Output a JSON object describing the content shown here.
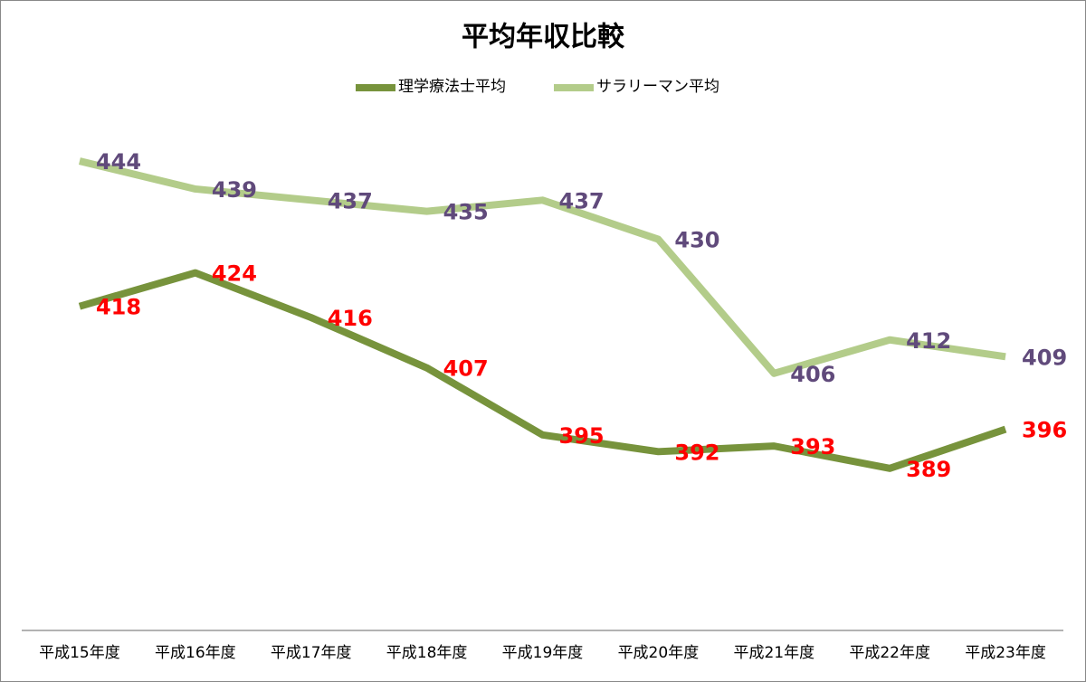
{
  "chart_data": {
    "type": "line",
    "title": "平均年収比較",
    "categories": [
      "平成15年度",
      "平成16年度",
      "平成17年度",
      "平成18年度",
      "平成19年度",
      "平成20年度",
      "平成21年度",
      "平成22年度",
      "平成23年度"
    ],
    "series": [
      {
        "name": "理学療法士平均",
        "color": "#77933c",
        "label_color": "#ff0000",
        "values": [
          418,
          424,
          416,
          407,
          395,
          392,
          393,
          389,
          396
        ]
      },
      {
        "name": "サラリーマン平均",
        "color": "#b3cc8a",
        "label_color": "#604a7b",
        "values": [
          444,
          439,
          437,
          435,
          437,
          430,
          406,
          412,
          409
        ]
      }
    ],
    "ylim": [
      360,
      450
    ],
    "legend": "top"
  }
}
